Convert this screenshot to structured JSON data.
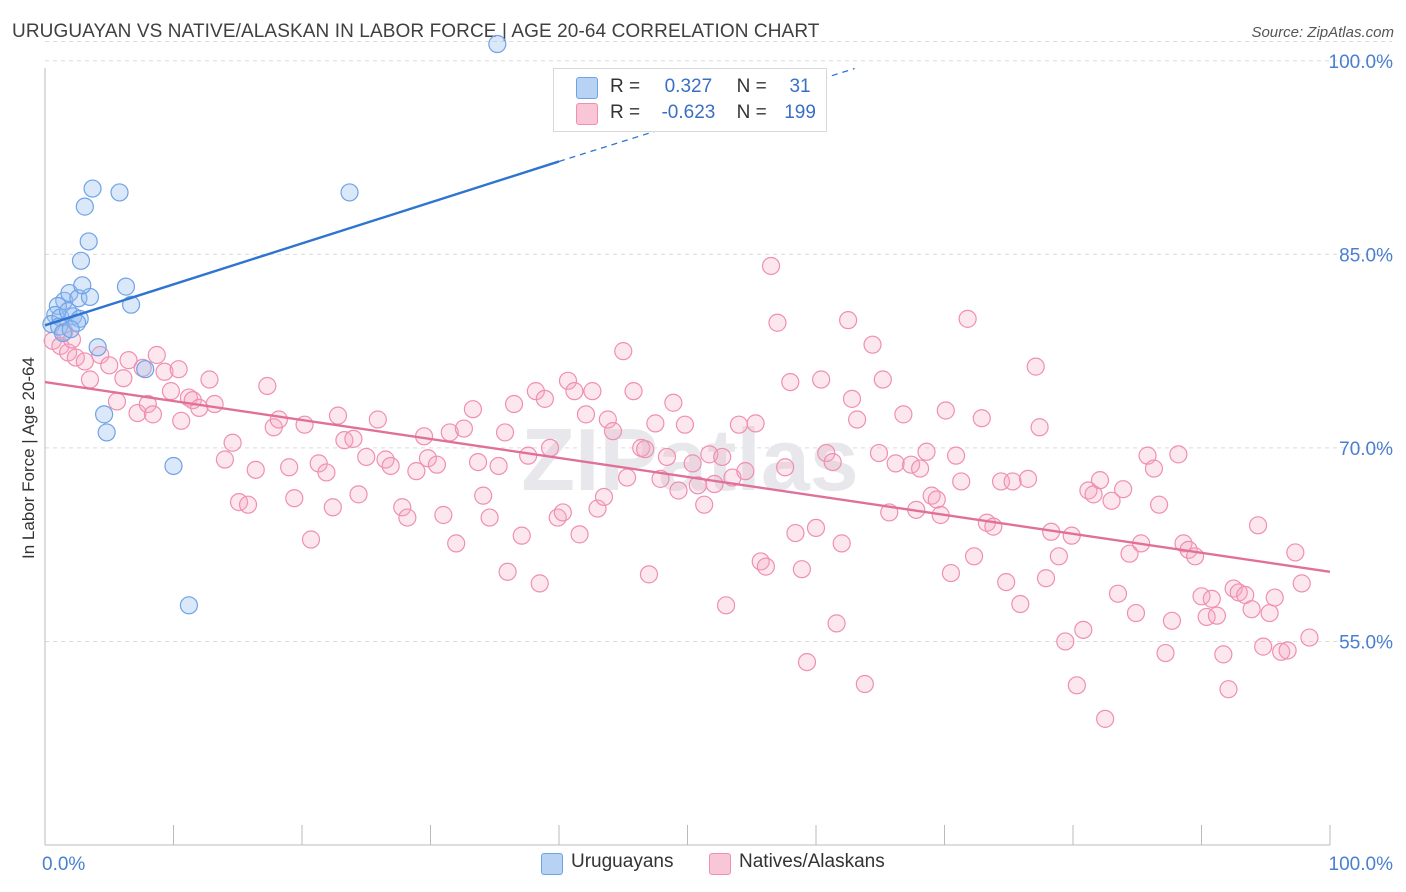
{
  "title": "URUGUAYAN VS NATIVE/ALASKAN IN LABOR FORCE | AGE 20-64 CORRELATION CHART",
  "source": "Source: ZipAtlas.com",
  "watermark": "ZIPatlas",
  "legend": {
    "rows": [
      {
        "r_label": "R =",
        "r_value": "0.327",
        "n_label": "N =",
        "n_value": "31"
      },
      {
        "r_label": "R =",
        "r_value": "-0.623",
        "n_label": "N =",
        "n_value": "199"
      }
    ]
  },
  "bottom_legend": {
    "series1": "Uruguayans",
    "series2": "Natives/Alaskans"
  },
  "colors": {
    "blue": "#6fa3e6",
    "blue_line": "#2f74d0",
    "pink": "#f08fb0",
    "pink_line": "#e0709a",
    "tick": "#4a7fd0"
  },
  "chart_data": {
    "type": "scatter",
    "title": "URUGUAYAN VS NATIVE/ALASKAN IN LABOR FORCE | AGE 20-64 CORRELATION CHART",
    "xlabel": "",
    "ylabel": "In Labor Force | Age 20-64",
    "xlim": [
      0,
      100
    ],
    "ylim": [
      40,
      102
    ],
    "x_tick_labels": [
      "0.0%",
      "100.0%"
    ],
    "y_ticks": [
      55,
      70,
      85,
      100
    ],
    "y_tick_labels": [
      "55.0%",
      "70.0%",
      "85.0%",
      "100.0%"
    ],
    "series": [
      {
        "name": "Uruguayans",
        "r": 0.327,
        "n": 31,
        "trend": {
          "x1": 0,
          "y1": 79.5,
          "x2": 40,
          "y2": 92.2,
          "dash_x2": 63,
          "dash_y2": 99.4
        },
        "points": [
          [
            35.2,
            101.3
          ],
          [
            1.5,
            81.4
          ],
          [
            1.0,
            81.0
          ],
          [
            0.8,
            80.3
          ],
          [
            0.5,
            79.6
          ],
          [
            1.2,
            80.1
          ],
          [
            1.8,
            80.6
          ],
          [
            2.2,
            80.2
          ],
          [
            2.7,
            80.0
          ],
          [
            1.1,
            79.4
          ],
          [
            1.4,
            78.9
          ],
          [
            2.5,
            79.7
          ],
          [
            1.9,
            82.0
          ],
          [
            2.6,
            81.6
          ],
          [
            3.5,
            81.7
          ],
          [
            2.9,
            82.6
          ],
          [
            6.3,
            82.5
          ],
          [
            6.7,
            81.1
          ],
          [
            2.8,
            84.5
          ],
          [
            3.4,
            86.0
          ],
          [
            3.1,
            88.7
          ],
          [
            3.7,
            90.1
          ],
          [
            5.8,
            89.8
          ],
          [
            23.7,
            89.8
          ],
          [
            4.1,
            77.8
          ],
          [
            7.8,
            76.1
          ],
          [
            4.6,
            72.6
          ],
          [
            4.8,
            71.2
          ],
          [
            10.0,
            68.6
          ],
          [
            11.2,
            57.8
          ],
          [
            2.0,
            79.2
          ]
        ]
      },
      {
        "name": "Natives/Alaskans",
        "r": -0.623,
        "n": 199,
        "trend": {
          "x1": 0,
          "y1": 75.1,
          "x2": 100,
          "y2": 60.4
        },
        "points": [
          [
            0.6,
            78.3
          ],
          [
            1.2,
            77.9
          ],
          [
            1.8,
            77.4
          ],
          [
            2.4,
            77.0
          ],
          [
            3.1,
            76.7
          ],
          [
            1.5,
            79.0
          ],
          [
            2.1,
            78.4
          ],
          [
            3.5,
            75.3
          ],
          [
            4.3,
            77.2
          ],
          [
            5.0,
            76.4
          ],
          [
            5.6,
            73.6
          ],
          [
            6.1,
            75.4
          ],
          [
            6.5,
            76.8
          ],
          [
            7.2,
            72.7
          ],
          [
            7.6,
            76.2
          ],
          [
            8.0,
            73.4
          ],
          [
            8.4,
            72.6
          ],
          [
            8.7,
            77.2
          ],
          [
            9.3,
            75.9
          ],
          [
            9.8,
            74.4
          ],
          [
            10.4,
            76.1
          ],
          [
            10.6,
            72.1
          ],
          [
            11.2,
            73.9
          ],
          [
            11.5,
            73.7
          ],
          [
            12.0,
            73.1
          ],
          [
            12.8,
            75.3
          ],
          [
            13.2,
            73.4
          ],
          [
            14.0,
            69.1
          ],
          [
            14.6,
            70.4
          ],
          [
            15.1,
            65.8
          ],
          [
            15.8,
            65.6
          ],
          [
            16.4,
            68.3
          ],
          [
            17.3,
            74.8
          ],
          [
            17.8,
            71.6
          ],
          [
            18.2,
            72.2
          ],
          [
            19.0,
            68.5
          ],
          [
            19.4,
            66.1
          ],
          [
            20.2,
            71.8
          ],
          [
            20.7,
            62.9
          ],
          [
            21.3,
            68.8
          ],
          [
            21.9,
            68.1
          ],
          [
            22.4,
            65.4
          ],
          [
            22.8,
            72.5
          ],
          [
            23.3,
            70.6
          ],
          [
            24.0,
            70.7
          ],
          [
            24.4,
            66.4
          ],
          [
            25.0,
            69.3
          ],
          [
            25.9,
            72.2
          ],
          [
            26.5,
            69.1
          ],
          [
            26.9,
            68.6
          ],
          [
            27.8,
            65.4
          ],
          [
            28.2,
            64.6
          ],
          [
            28.9,
            68.2
          ],
          [
            29.5,
            70.9
          ],
          [
            29.8,
            69.2
          ],
          [
            30.5,
            68.7
          ],
          [
            31.0,
            64.8
          ],
          [
            31.5,
            71.2
          ],
          [
            32.0,
            62.6
          ],
          [
            32.6,
            71.5
          ],
          [
            33.3,
            73.0
          ],
          [
            33.7,
            68.9
          ],
          [
            34.1,
            66.3
          ],
          [
            34.6,
            64.6
          ],
          [
            35.3,
            68.6
          ],
          [
            35.8,
            71.2
          ],
          [
            36.0,
            60.4
          ],
          [
            36.5,
            73.4
          ],
          [
            37.1,
            63.2
          ],
          [
            37.6,
            69.4
          ],
          [
            38.2,
            74.4
          ],
          [
            38.5,
            59.5
          ],
          [
            38.9,
            73.8
          ],
          [
            39.3,
            70.0
          ],
          [
            39.9,
            64.6
          ],
          [
            40.3,
            65.0
          ],
          [
            40.7,
            75.2
          ],
          [
            41.2,
            74.4
          ],
          [
            41.6,
            63.3
          ],
          [
            42.1,
            72.6
          ],
          [
            42.6,
            74.4
          ],
          [
            43.0,
            65.3
          ],
          [
            43.5,
            66.2
          ],
          [
            43.8,
            72.2
          ],
          [
            44.2,
            71.3
          ],
          [
            45.0,
            77.5
          ],
          [
            45.3,
            67.7
          ],
          [
            45.8,
            74.4
          ],
          [
            46.4,
            70.0
          ],
          [
            46.7,
            69.9
          ],
          [
            47.0,
            60.2
          ],
          [
            47.5,
            71.9
          ],
          [
            47.9,
            67.6
          ],
          [
            48.4,
            69.3
          ],
          [
            48.9,
            73.5
          ],
          [
            49.3,
            66.7
          ],
          [
            49.8,
            71.8
          ],
          [
            50.4,
            68.8
          ],
          [
            50.8,
            67.1
          ],
          [
            51.3,
            65.6
          ],
          [
            51.7,
            69.5
          ],
          [
            52.1,
            67.2
          ],
          [
            52.7,
            69.3
          ],
          [
            53.0,
            57.8
          ],
          [
            53.5,
            67.7
          ],
          [
            54.0,
            71.8
          ],
          [
            54.5,
            68.2
          ],
          [
            55.3,
            71.9
          ],
          [
            55.7,
            61.2
          ],
          [
            56.1,
            60.8
          ],
          [
            56.5,
            84.1
          ],
          [
            57.0,
            79.7
          ],
          [
            57.6,
            68.5
          ],
          [
            58.0,
            75.1
          ],
          [
            58.4,
            63.4
          ],
          [
            58.9,
            60.6
          ],
          [
            59.3,
            53.4
          ],
          [
            60.0,
            63.8
          ],
          [
            60.4,
            75.3
          ],
          [
            60.8,
            69.6
          ],
          [
            61.3,
            68.9
          ],
          [
            61.6,
            56.4
          ],
          [
            62.0,
            62.6
          ],
          [
            62.5,
            79.9
          ],
          [
            62.8,
            73.8
          ],
          [
            63.2,
            72.2
          ],
          [
            63.8,
            51.7
          ],
          [
            64.4,
            78.0
          ],
          [
            64.9,
            69.6
          ],
          [
            65.2,
            75.3
          ],
          [
            65.7,
            65.0
          ],
          [
            66.2,
            68.8
          ],
          [
            66.8,
            72.6
          ],
          [
            67.4,
            68.7
          ],
          [
            67.8,
            65.2
          ],
          [
            68.1,
            68.4
          ],
          [
            68.6,
            69.7
          ],
          [
            69.0,
            66.3
          ],
          [
            69.4,
            66.0
          ],
          [
            69.7,
            64.8
          ],
          [
            70.1,
            72.9
          ],
          [
            70.5,
            60.3
          ],
          [
            70.9,
            69.4
          ],
          [
            71.3,
            67.4
          ],
          [
            71.8,
            80.0
          ],
          [
            72.3,
            61.6
          ],
          [
            72.9,
            72.3
          ],
          [
            73.3,
            64.2
          ],
          [
            73.8,
            63.9
          ],
          [
            74.4,
            67.4
          ],
          [
            74.8,
            59.6
          ],
          [
            75.3,
            67.4
          ],
          [
            75.9,
            57.9
          ],
          [
            76.5,
            67.6
          ],
          [
            77.1,
            76.3
          ],
          [
            77.4,
            71.6
          ],
          [
            77.9,
            59.9
          ],
          [
            78.3,
            63.5
          ],
          [
            78.9,
            61.6
          ],
          [
            79.4,
            55.0
          ],
          [
            79.9,
            63.2
          ],
          [
            80.3,
            51.6
          ],
          [
            80.8,
            55.9
          ],
          [
            81.2,
            66.7
          ],
          [
            81.6,
            66.4
          ],
          [
            82.1,
            67.5
          ],
          [
            82.5,
            49.0
          ],
          [
            83.0,
            65.9
          ],
          [
            83.5,
            58.7
          ],
          [
            83.9,
            66.8
          ],
          [
            84.4,
            61.8
          ],
          [
            84.9,
            57.2
          ],
          [
            85.3,
            62.6
          ],
          [
            85.8,
            69.4
          ],
          [
            86.3,
            68.4
          ],
          [
            86.7,
            65.6
          ],
          [
            87.2,
            54.1
          ],
          [
            87.7,
            56.6
          ],
          [
            88.2,
            69.5
          ],
          [
            88.6,
            62.6
          ],
          [
            89.0,
            62.1
          ],
          [
            89.5,
            61.6
          ],
          [
            90.0,
            58.5
          ],
          [
            90.4,
            56.9
          ],
          [
            90.8,
            58.3
          ],
          [
            91.2,
            57.0
          ],
          [
            91.7,
            54.0
          ],
          [
            92.1,
            51.3
          ],
          [
            92.5,
            59.1
          ],
          [
            92.9,
            58.8
          ],
          [
            93.4,
            58.6
          ],
          [
            93.9,
            57.5
          ],
          [
            94.4,
            64.0
          ],
          [
            94.8,
            54.6
          ],
          [
            95.3,
            57.2
          ],
          [
            95.7,
            58.4
          ],
          [
            96.2,
            54.2
          ],
          [
            96.7,
            54.3
          ],
          [
            97.3,
            61.9
          ],
          [
            97.8,
            59.5
          ],
          [
            98.4,
            55.3
          ]
        ]
      }
    ]
  }
}
